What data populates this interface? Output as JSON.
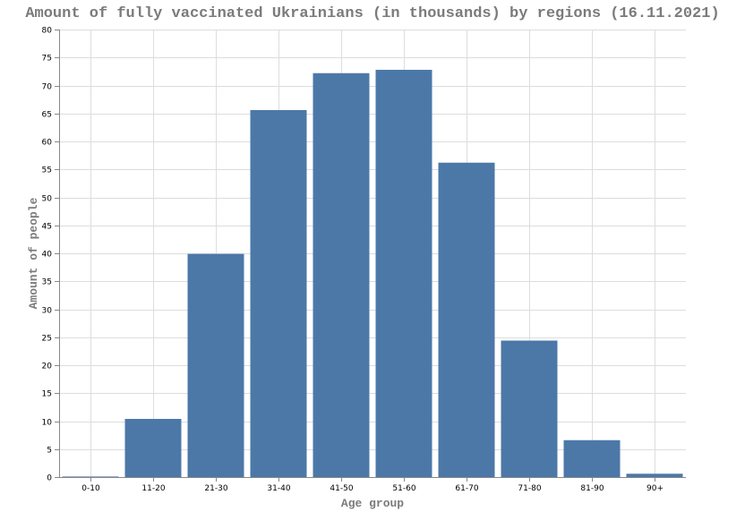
{
  "chart_data": {
    "type": "bar",
    "title": "Amount of fully vaccinated Ukrainians (in thousands) by regions (16.11.2021)",
    "xlabel": "Age group",
    "ylabel": "Amount of people",
    "categories": [
      "0-10",
      "11-20",
      "21-30",
      "31-40",
      "41-50",
      "51-60",
      "61-70",
      "71-80",
      "81-90",
      "90+"
    ],
    "values": [
      0.1,
      10.4,
      39.9,
      65.6,
      72.2,
      72.8,
      56.2,
      24.4,
      6.6,
      0.6
    ],
    "ylim": [
      0,
      80
    ],
    "yticks": [
      0,
      5,
      10,
      15,
      20,
      25,
      30,
      35,
      40,
      45,
      50,
      55,
      60,
      65,
      70,
      75,
      80
    ],
    "grid": true,
    "bar_color": "#4c78a8"
  }
}
